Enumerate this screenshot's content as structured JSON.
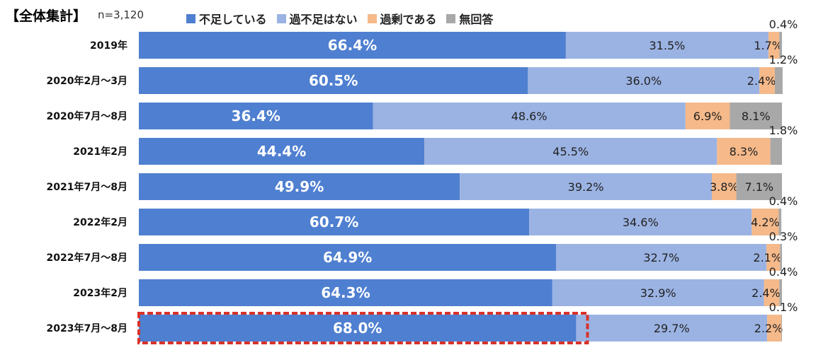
{
  "header": {
    "title": "【全体集計】",
    "n_label": "n=3,120"
  },
  "colors": {
    "shortage": "#4f7fd0",
    "not_short": "#9bb3e3",
    "surplus": "#f5b98a",
    "no_answer": "#a8a8a8",
    "highlight": "#d9322a"
  },
  "chart_data": {
    "type": "bar",
    "orientation": "horizontal-stacked-100",
    "categories": [
      "2019年",
      "2020年2月～3月",
      "2020年7月～8月",
      "2021年2月",
      "2021年7月～8月",
      "2022年2月",
      "2022年7月～8月",
      "2023年2月",
      "2023年7月～8月"
    ],
    "series": [
      {
        "name": "不足している",
        "values": [
          66.4,
          60.5,
          36.4,
          44.4,
          49.9,
          60.7,
          64.9,
          64.3,
          68.0
        ],
        "labels": [
          "66.4%",
          "60.5%",
          "36.4%",
          "44.4%",
          "49.9%",
          "60.7%",
          "64.9%",
          "64.3%",
          "68.0%"
        ]
      },
      {
        "name": "過不足はない",
        "values": [
          31.5,
          36.0,
          48.6,
          45.5,
          39.2,
          34.6,
          32.7,
          32.9,
          29.7
        ],
        "labels": [
          "31.5%",
          "36.0%",
          "48.6%",
          "45.5%",
          "39.2%",
          "34.6%",
          "32.7%",
          "32.9%",
          "29.7%"
        ]
      },
      {
        "name": "過剰である",
        "values": [
          1.7,
          2.4,
          6.9,
          8.3,
          3.8,
          4.2,
          2.1,
          2.4,
          2.2
        ],
        "labels": [
          "1.7%",
          "2.4%",
          "6.9%",
          "8.3%",
          "3.8%",
          "4.2%",
          "2.1%",
          "2.4%",
          "2.2%"
        ]
      },
      {
        "name": "無回答",
        "values": [
          0.4,
          1.2,
          8.1,
          1.8,
          7.1,
          0.4,
          0.3,
          0.4,
          0.1
        ],
        "labels": [
          "0.4%",
          "1.2%",
          "8.1%",
          "1.8%",
          "7.1%",
          "0.4%",
          "0.3%",
          "0.4%",
          "0.1%"
        ]
      }
    ],
    "xlim": [
      0,
      100
    ],
    "legend_position": "top",
    "highlighted_category": "2023年7月～8月",
    "grid": false
  }
}
